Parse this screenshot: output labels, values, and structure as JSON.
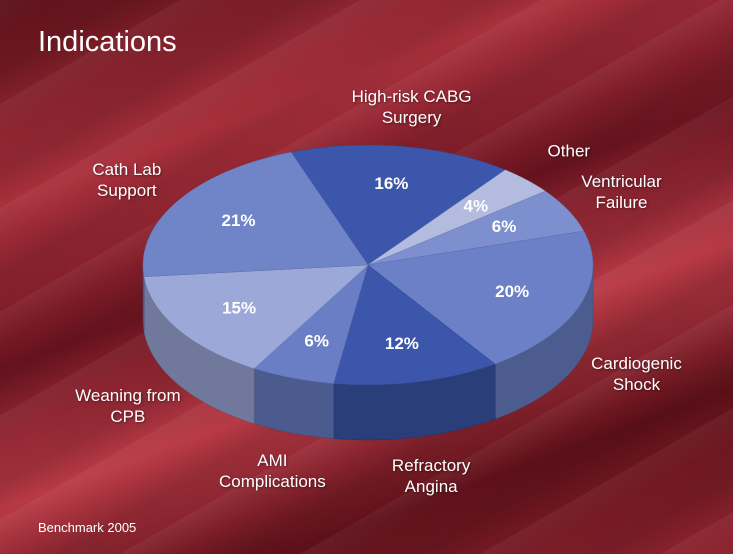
{
  "chart_data": {
    "type": "pie3d",
    "title": "Indications",
    "source": "Benchmark 2005",
    "categories": [
      "High-risk CABG Surgery",
      "Other",
      "Ventricular Failure",
      "Cardiogenic Shock",
      "Refractory Angina",
      "AMI Complications",
      "Weaning from CPB",
      "Cath Lab Support"
    ],
    "values": [
      16,
      4,
      6,
      20,
      12,
      6,
      15,
      21
    ],
    "value_labels": [
      "16%",
      "4%",
      "6%",
      "20%",
      "12%",
      "6%",
      "15%",
      "21%"
    ],
    "colors": [
      "#3b56aa",
      "#b3bbdf",
      "#7d8fcf",
      "#6b80c7",
      "#3b56aa",
      "#6a7ec5",
      "#9ba8d8",
      "#7084c8"
    ]
  }
}
